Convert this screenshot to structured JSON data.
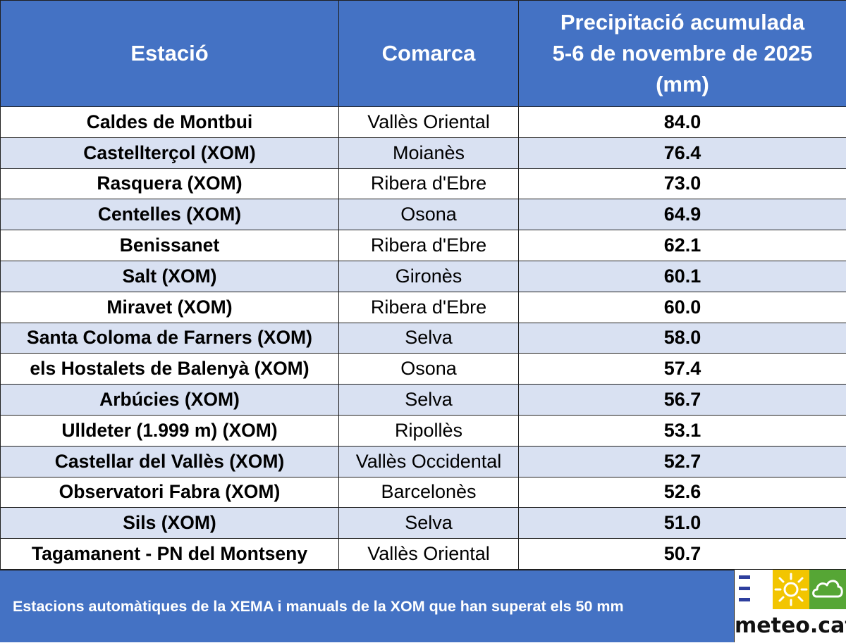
{
  "table": {
    "headers": {
      "station": "Estació",
      "county": "Comarca",
      "precip_line1": "Precipitació acumulada",
      "precip_line2": "5-6 de novembre de 2025",
      "precip_line3": "(mm)"
    },
    "rows": [
      {
        "station": "Caldes de Montbui",
        "county": "Vallès Oriental",
        "value": "84.0"
      },
      {
        "station": "Castellterçol (XOM)",
        "county": "Moianès",
        "value": "76.4"
      },
      {
        "station": "Rasquera (XOM)",
        "county": "Ribera d'Ebre",
        "value": "73.0"
      },
      {
        "station": "Centelles (XOM)",
        "county": "Osona",
        "value": "64.9"
      },
      {
        "station": "Benissanet",
        "county": "Ribera d'Ebre",
        "value": "62.1"
      },
      {
        "station": "Salt (XOM)",
        "county": "Gironès",
        "value": "60.1"
      },
      {
        "station": "Miravet (XOM)",
        "county": "Ribera d'Ebre",
        "value": "60.0"
      },
      {
        "station": "Santa Coloma de Farners (XOM)",
        "county": "Selva",
        "value": "58.0"
      },
      {
        "station": "els Hostalets de Balenyà (XOM)",
        "county": "Osona",
        "value": "57.4"
      },
      {
        "station": "Arbúcies (XOM)",
        "county": "Selva",
        "value": "56.7"
      },
      {
        "station": "Ulldeter (1.999 m) (XOM)",
        "county": "Ripollès",
        "value": "53.1"
      },
      {
        "station": "Castellar del Vallès (XOM)",
        "county": "Vallès Occidental",
        "value": "52.7"
      },
      {
        "station": "Observatori Fabra (XOM)",
        "county": "Barcelonès",
        "value": "52.6"
      },
      {
        "station": "Sils (XOM)",
        "county": "Selva",
        "value": "51.0"
      },
      {
        "station": "Tagamanent - PN del Montseny",
        "county": "Vallès Oriental",
        "value": "50.7"
      }
    ]
  },
  "footer": {
    "caption": "Estacions automàtiques de la XEMA i manuals de la XOM que han superat els 50 mm"
  },
  "logo": {
    "text": "meteo.cat",
    "icons": [
      "menu-icon",
      "sun-icon",
      "cloud-icon"
    ]
  },
  "colors": {
    "header_bg": "#4472c4",
    "row_shade": "#d9e1f2",
    "row_white": "#ffffff",
    "logo_sun": "#f2c500",
    "logo_cloud": "#56a635",
    "logo_menu": "#2e3f9e"
  }
}
